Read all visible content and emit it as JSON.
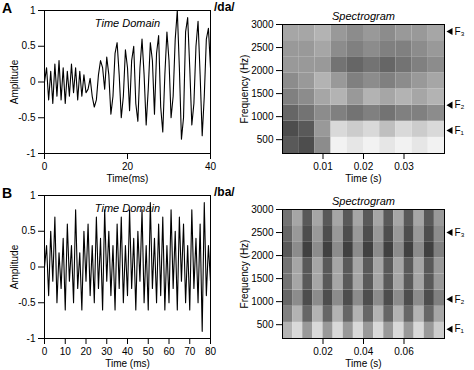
{
  "panels": [
    {
      "label": "A",
      "syllable": "/da/"
    },
    {
      "label": "B",
      "syllable": "/ba/"
    }
  ],
  "chart_data": [
    {
      "type": "line",
      "title": "Time Domain",
      "xlabel": "Time(ms)",
      "ylabel": "Amplitude",
      "color": "#000000",
      "xlim": [
        0,
        40
      ],
      "xticks": [
        0,
        20,
        40
      ],
      "ylim": [
        -1,
        1
      ],
      "yticks": [
        -1,
        -0.5,
        0,
        0.5,
        1
      ],
      "x": [
        0,
        0.5,
        1,
        1.5,
        2,
        2.5,
        3,
        3.5,
        4,
        4.5,
        5,
        5.5,
        6,
        6.5,
        7,
        7.5,
        8,
        8.5,
        9,
        9.5,
        10,
        10.5,
        11,
        11.5,
        12,
        12.5,
        13,
        13.5,
        14,
        14.5,
        15,
        15.5,
        16,
        16.5,
        17,
        17.5,
        18,
        18.5,
        19,
        19.5,
        20,
        20.5,
        21,
        21.5,
        22,
        22.5,
        23,
        23.5,
        24,
        24.5,
        25,
        25.5,
        26,
        26.5,
        27,
        27.5,
        28,
        28.5,
        29,
        29.5,
        30,
        30.5,
        31,
        31.5,
        32,
        32.5,
        33,
        33.5,
        34,
        34.5,
        35,
        35.5,
        36,
        36.5,
        37,
        37.5,
        38,
        38.5,
        39,
        39.5,
        40
      ],
      "values": [
        0,
        0.2,
        -0.25,
        0.15,
        -0.3,
        0.25,
        -0.2,
        0.3,
        -0.25,
        0.2,
        -0.3,
        0.15,
        -0.2,
        0.25,
        -0.15,
        0.2,
        -0.25,
        0.15,
        -0.2,
        0.1,
        -0.15,
        -0.1,
        0.05,
        -0.2,
        -0.35,
        -0.25,
        0.1,
        0.3,
        0.2,
        -0.1,
        0.35,
        0.1,
        -0.45,
        -0.2,
        0.4,
        0.55,
        0.1,
        -0.5,
        -0.2,
        0.45,
        0.2,
        -0.4,
        0.3,
        0.5,
        -0.3,
        -0.55,
        0.2,
        0.6,
        0.1,
        -0.6,
        -0.1,
        0.55,
        0.3,
        -0.45,
        0.4,
        0.65,
        -0.35,
        -0.7,
        0.1,
        0.7,
        0.3,
        -0.5,
        -0.2,
        0.6,
        1,
        0.2,
        -0.8,
        -0.5,
        0.7,
        0.9,
        0.2,
        -0.6,
        -0.3,
        0.5,
        0.85,
        0.1,
        -0.75,
        -0.2,
        0.6,
        0.75,
        0.2
      ]
    },
    {
      "type": "heatmap",
      "title": "Spectrogram",
      "xlabel": "Time (s)",
      "ylabel": "Frequency (Hz)",
      "xlim": [
        0,
        0.04
      ],
      "xticks": [
        0.01,
        0.02,
        0.03
      ],
      "ylim": [
        200,
        3000
      ],
      "yticks": [
        500,
        1000,
        1500,
        2000,
        2500,
        3000
      ],
      "x_edges": [
        0,
        0.004,
        0.008,
        0.012,
        0.016,
        0.02,
        0.024,
        0.028,
        0.032,
        0.036,
        0.04
      ],
      "y_edges": [
        200,
        550,
        900,
        1250,
        1600,
        1950,
        2300,
        2650,
        3000
      ],
      "zlim": [
        0,
        1
      ],
      "cells": [
        [
          0.35,
          0.3,
          0.55,
          0.95,
          0.9,
          0.95,
          0.9,
          0.95,
          0.9,
          0.95
        ],
        [
          0.3,
          0.35,
          0.6,
          0.85,
          0.8,
          0.85,
          0.75,
          0.85,
          0.8,
          0.85
        ],
        [
          0.4,
          0.45,
          0.55,
          0.5,
          0.45,
          0.5,
          0.45,
          0.5,
          0.5,
          0.55
        ],
        [
          0.5,
          0.55,
          0.65,
          0.7,
          0.6,
          0.7,
          0.65,
          0.7,
          0.65,
          0.7
        ],
        [
          0.55,
          0.6,
          0.7,
          0.6,
          0.5,
          0.55,
          0.5,
          0.55,
          0.6,
          0.65
        ],
        [
          0.6,
          0.6,
          0.6,
          0.45,
          0.4,
          0.45,
          0.4,
          0.45,
          0.5,
          0.55
        ],
        [
          0.6,
          0.6,
          0.65,
          0.55,
          0.5,
          0.55,
          0.5,
          0.5,
          0.55,
          0.6
        ],
        [
          0.65,
          0.65,
          0.7,
          0.6,
          0.55,
          0.6,
          0.55,
          0.6,
          0.6,
          0.65
        ]
      ],
      "annotations": [
        {
          "text": "F₃",
          "y": 2850
        },
        {
          "text": "F₂",
          "y": 1250
        },
        {
          "text": "F₁",
          "y": 700
        }
      ]
    },
    {
      "type": "line",
      "title": "Time Domain",
      "xlabel": "Time (ms)",
      "ylabel": "Amplitude",
      "color": "#000000",
      "xlim": [
        0,
        80
      ],
      "xticks": [
        0,
        10,
        20,
        30,
        40,
        50,
        60,
        70,
        80
      ],
      "ylim": [
        -1,
        1
      ],
      "yticks": [
        -1,
        -0.5,
        0,
        0.5,
        1
      ],
      "x": [
        0,
        1,
        2,
        3,
        4,
        5,
        6,
        7,
        8,
        9,
        10,
        11,
        12,
        13,
        14,
        15,
        16,
        17,
        18,
        19,
        20,
        21,
        22,
        23,
        24,
        25,
        26,
        27,
        28,
        29,
        30,
        31,
        32,
        33,
        34,
        35,
        36,
        37,
        38,
        39,
        40,
        41,
        42,
        43,
        44,
        45,
        46,
        47,
        48,
        49,
        50,
        51,
        52,
        53,
        54,
        55,
        56,
        57,
        58,
        59,
        60,
        61,
        62,
        63,
        64,
        65,
        66,
        67,
        68,
        69,
        70,
        71,
        72,
        73,
        74,
        75,
        76,
        77,
        78,
        79,
        80
      ],
      "values": [
        0,
        0.3,
        -0.4,
        0.5,
        -0.2,
        0.7,
        -0.5,
        0.2,
        -0.3,
        0.4,
        -0.6,
        0.6,
        -0.2,
        0.3,
        -0.5,
        0.8,
        -0.3,
        0.2,
        -0.6,
        0.5,
        -0.2,
        0.6,
        -0.4,
        0.3,
        -0.5,
        0.7,
        -0.3,
        0.4,
        -0.6,
        0.8,
        -0.2,
        0.5,
        -0.4,
        0.3,
        -0.6,
        0.6,
        -0.3,
        0.7,
        -0.5,
        0.3,
        -0.4,
        0.8,
        -0.3,
        0.4,
        -0.6,
        0.5,
        -0.2,
        0.8,
        -0.5,
        0.3,
        -0.6,
        0.9,
        -0.3,
        0.4,
        -0.5,
        0.6,
        -0.4,
        0.7,
        -0.6,
        0.3,
        -0.5,
        0.8,
        -0.3,
        0.5,
        -0.6,
        0.7,
        -0.2,
        0.6,
        -0.5,
        0.3,
        -0.6,
        0.8,
        -0.3,
        0.4,
        -0.5,
        0.6,
        -0.9,
        0.9,
        -0.4,
        0.3,
        -0.2
      ]
    },
    {
      "type": "heatmap",
      "title": "Spectrogram",
      "xlabel": "Time (s)",
      "ylabel": "Frequency (Hz)",
      "xlim": [
        0,
        0.08
      ],
      "xticks": [
        0.02,
        0.04,
        0.06
      ],
      "ylim": [
        200,
        3000
      ],
      "yticks": [
        500,
        1000,
        1500,
        2000,
        2500,
        3000
      ],
      "x_edges": [
        0,
        0.005,
        0.01,
        0.015,
        0.02,
        0.025,
        0.03,
        0.035,
        0.04,
        0.045,
        0.05,
        0.055,
        0.06,
        0.065,
        0.07,
        0.075,
        0.08
      ],
      "y_edges": [
        200,
        550,
        900,
        1250,
        1600,
        1950,
        2300,
        2650,
        3000
      ],
      "zlim": [
        0,
        1
      ],
      "cells": [
        [
          0.7,
          0.85,
          0.6,
          0.85,
          0.6,
          0.85,
          0.6,
          0.85,
          0.6,
          0.85,
          0.6,
          0.85,
          0.6,
          0.85,
          0.6,
          0.8
        ],
        [
          0.5,
          0.7,
          0.4,
          0.7,
          0.4,
          0.7,
          0.4,
          0.7,
          0.4,
          0.7,
          0.4,
          0.7,
          0.4,
          0.7,
          0.4,
          0.65
        ],
        [
          0.4,
          0.55,
          0.3,
          0.55,
          0.3,
          0.55,
          0.3,
          0.55,
          0.3,
          0.55,
          0.3,
          0.55,
          0.3,
          0.55,
          0.3,
          0.5
        ],
        [
          0.45,
          0.65,
          0.35,
          0.65,
          0.35,
          0.65,
          0.35,
          0.65,
          0.35,
          0.65,
          0.35,
          0.65,
          0.35,
          0.65,
          0.35,
          0.6
        ],
        [
          0.45,
          0.65,
          0.35,
          0.65,
          0.35,
          0.65,
          0.35,
          0.65,
          0.35,
          0.65,
          0.35,
          0.65,
          0.35,
          0.65,
          0.35,
          0.6
        ],
        [
          0.35,
          0.55,
          0.25,
          0.55,
          0.25,
          0.55,
          0.25,
          0.55,
          0.25,
          0.55,
          0.25,
          0.55,
          0.25,
          0.55,
          0.25,
          0.5
        ],
        [
          0.4,
          0.6,
          0.3,
          0.6,
          0.3,
          0.6,
          0.3,
          0.6,
          0.3,
          0.6,
          0.3,
          0.6,
          0.3,
          0.6,
          0.3,
          0.55
        ],
        [
          0.45,
          0.65,
          0.35,
          0.65,
          0.35,
          0.65,
          0.35,
          0.65,
          0.35,
          0.65,
          0.35,
          0.65,
          0.35,
          0.65,
          0.35,
          0.6
        ]
      ],
      "annotations": [
        {
          "text": "F₃",
          "y": 2500
        },
        {
          "text": "F₂",
          "y": 1050
        },
        {
          "text": "F₁",
          "y": 400
        }
      ]
    }
  ]
}
